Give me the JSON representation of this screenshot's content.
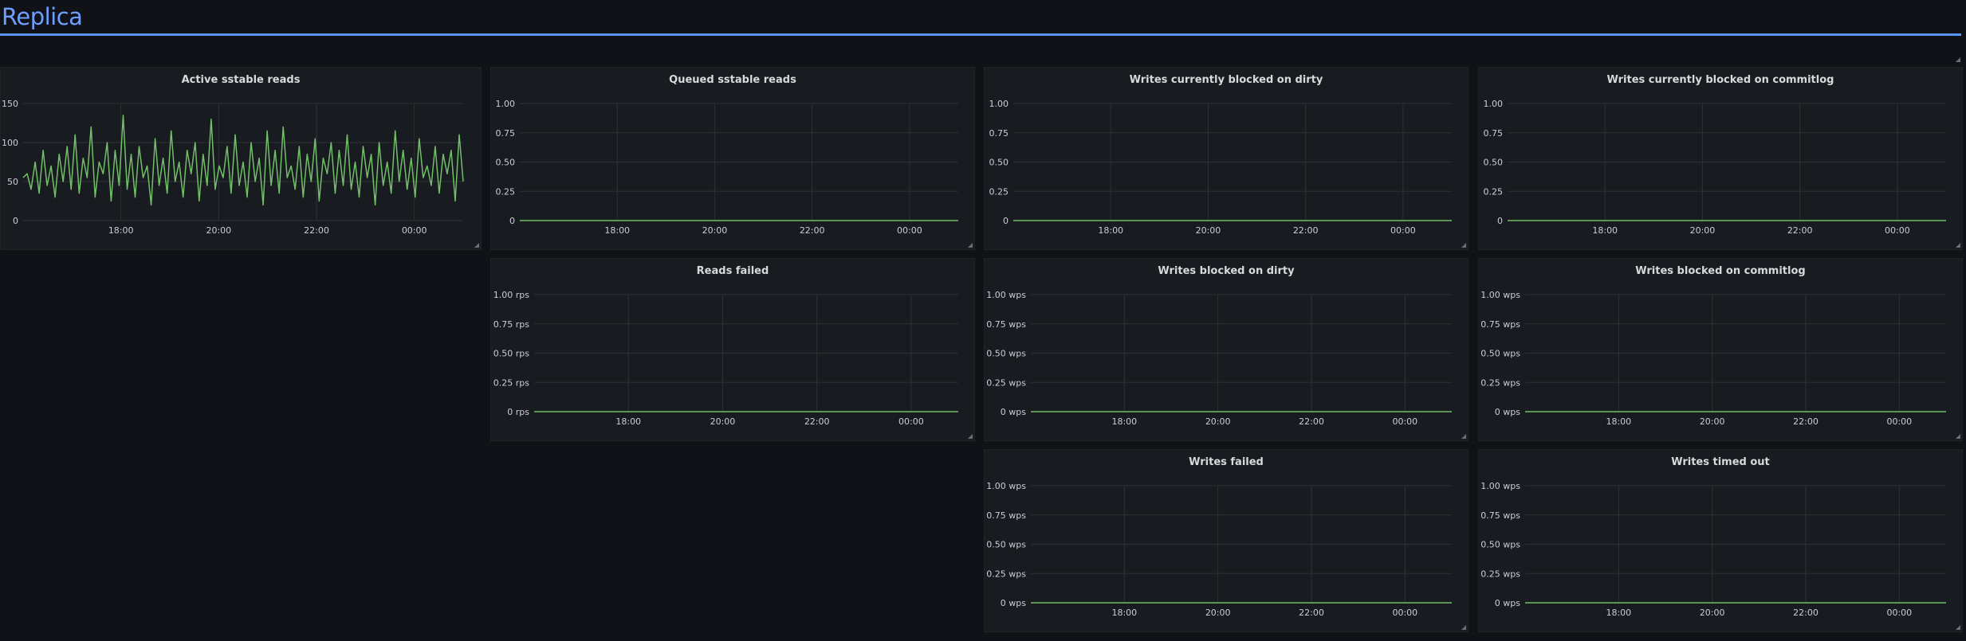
{
  "row": {
    "title": "Replica"
  },
  "colors": {
    "series": "#73bf69",
    "grid": "#2e3036",
    "panel_bg": "#181b1f",
    "page_bg": "#111217",
    "row_line": "#5794f2"
  },
  "panels": [
    {
      "id": "active-sstable-reads",
      "title": "Active sstable reads",
      "chart_kind": "noisy"
    },
    {
      "id": "queued-sstable-reads",
      "title": "Queued sstable reads",
      "chart_kind": "flat"
    },
    {
      "id": "writes-currently-blocked-on-dirty",
      "title": "Writes currently blocked on dirty",
      "chart_kind": "flat"
    },
    {
      "id": "writes-currently-blocked-on-commitlog",
      "title": "Writes currently blocked on commitlog",
      "chart_kind": "flat"
    },
    {
      "id": "reads-failed",
      "title": "Reads failed",
      "chart_kind": "flat"
    },
    {
      "id": "writes-blocked-on-dirty",
      "title": "Writes blocked on dirty",
      "chart_kind": "flat"
    },
    {
      "id": "writes-blocked-on-commitlog",
      "title": "Writes blocked on commitlog",
      "chart_kind": "flat"
    },
    {
      "id": "writes-failed",
      "title": "Writes failed",
      "chart_kind": "flat"
    },
    {
      "id": "writes-timed-out",
      "title": "Writes timed out",
      "chart_kind": "flat"
    }
  ],
  "chart_data": [
    {
      "type": "line",
      "title": "Active sstable reads",
      "x_ticks": [
        "18:00",
        "20:00",
        "22:00",
        "00:00"
      ],
      "y_ticks": [
        "0",
        "50",
        "100",
        "150"
      ],
      "ylim": [
        0,
        150
      ],
      "xlim_hours": [
        16.0,
        25.0
      ],
      "x_tick_hours": [
        18,
        20,
        22,
        24
      ],
      "data_end_hour": 25.0,
      "grid": true,
      "series": [
        {
          "values_estimated": [
            55,
            60,
            40,
            75,
            35,
            90,
            45,
            70,
            30,
            85,
            50,
            95,
            40,
            110,
            35,
            80,
            55,
            120,
            30,
            75,
            60,
            100,
            25,
            90,
            45,
            135,
            40,
            85,
            30,
            95,
            55,
            70,
            20,
            105,
            45,
            80,
            35,
            115,
            50,
            75,
            30,
            90,
            60,
            100,
            25,
            85,
            45,
            130,
            40,
            70,
            55,
            95,
            35,
            110,
            45,
            75,
            30,
            100,
            50,
            80,
            20,
            115,
            45,
            90,
            35,
            120,
            55,
            70,
            40,
            95,
            30,
            85,
            50,
            105,
            25,
            80,
            60,
            100,
            35,
            90,
            45,
            110,
            40,
            75,
            30,
            95,
            55,
            85,
            20,
            100,
            45,
            75,
            35,
            115,
            50,
            90,
            40,
            80,
            30,
            105,
            55,
            70,
            45,
            95,
            35,
            85,
            60,
            90,
            25,
            110,
            50
          ]
        }
      ]
    },
    {
      "type": "line",
      "title": "Queued sstable reads",
      "x_ticks": [
        "18:00",
        "20:00",
        "22:00",
        "00:00"
      ],
      "y_ticks": [
        "0",
        "0.25",
        "0.50",
        "0.75",
        "1.00"
      ],
      "ylim": [
        0,
        1
      ],
      "xlim_hours": [
        16.0,
        25.0
      ],
      "x_tick_hours": [
        18,
        20,
        22,
        24
      ],
      "data_end_hour": 25.0,
      "grid": true,
      "series": [
        {
          "values": [
            0,
            0
          ]
        }
      ]
    },
    {
      "type": "line",
      "title": "Writes currently blocked on dirty",
      "x_ticks": [
        "18:00",
        "20:00",
        "22:00",
        "00:00"
      ],
      "y_ticks": [
        "0",
        "0.25",
        "0.50",
        "0.75",
        "1.00"
      ],
      "ylim": [
        0,
        1
      ],
      "xlim_hours": [
        16.0,
        25.0
      ],
      "x_tick_hours": [
        18,
        20,
        22,
        24
      ],
      "data_end_hour": 25.0,
      "grid": true,
      "series": [
        {
          "values": [
            0,
            0
          ]
        }
      ]
    },
    {
      "type": "line",
      "title": "Writes currently blocked on commitlog",
      "x_ticks": [
        "18:00",
        "20:00",
        "22:00",
        "00:00"
      ],
      "y_ticks": [
        "0",
        "0.25",
        "0.50",
        "0.75",
        "1.00"
      ],
      "ylim": [
        0,
        1
      ],
      "xlim_hours": [
        16.0,
        25.0
      ],
      "x_tick_hours": [
        18,
        20,
        22,
        24
      ],
      "data_end_hour": 25.0,
      "grid": true,
      "series": [
        {
          "values": [
            0,
            0
          ]
        }
      ]
    },
    {
      "type": "line",
      "title": "Reads failed",
      "x_ticks": [
        "18:00",
        "20:00",
        "22:00",
        "00:00"
      ],
      "y_ticks": [
        "0 rps",
        "0.25 rps",
        "0.50 rps",
        "0.75 rps",
        "1.00 rps"
      ],
      "ylim": [
        0,
        1
      ],
      "unit": "rps",
      "xlim_hours": [
        16.0,
        25.0
      ],
      "x_tick_hours": [
        18,
        20,
        22,
        24
      ],
      "data_end_hour": 25.0,
      "grid": true,
      "series": [
        {
          "values": [
            0,
            0
          ]
        }
      ]
    },
    {
      "type": "line",
      "title": "Writes blocked on dirty",
      "x_ticks": [
        "18:00",
        "20:00",
        "22:00",
        "00:00"
      ],
      "y_ticks": [
        "0 wps",
        "0.25 wps",
        "0.50 wps",
        "0.75 wps",
        "1.00 wps"
      ],
      "ylim": [
        0,
        1
      ],
      "unit": "wps",
      "xlim_hours": [
        16.0,
        25.0
      ],
      "x_tick_hours": [
        18,
        20,
        22,
        24
      ],
      "data_end_hour": 25.0,
      "grid": true,
      "series": [
        {
          "values": [
            0,
            0
          ]
        }
      ]
    },
    {
      "type": "line",
      "title": "Writes blocked on commitlog",
      "x_ticks": [
        "18:00",
        "20:00",
        "22:00",
        "00:00"
      ],
      "y_ticks": [
        "0 wps",
        "0.25 wps",
        "0.50 wps",
        "0.75 wps",
        "1.00 wps"
      ],
      "ylim": [
        0,
        1
      ],
      "unit": "wps",
      "xlim_hours": [
        16.0,
        25.0
      ],
      "x_tick_hours": [
        18,
        20,
        22,
        24
      ],
      "data_end_hour": 25.0,
      "grid": true,
      "series": [
        {
          "values": [
            0,
            0
          ]
        }
      ]
    },
    {
      "type": "line",
      "title": "Writes failed",
      "x_ticks": [
        "18:00",
        "20:00",
        "22:00",
        "00:00"
      ],
      "y_ticks": [
        "0 wps",
        "0.25 wps",
        "0.50 wps",
        "0.75 wps",
        "1.00 wps"
      ],
      "ylim": [
        0,
        1
      ],
      "unit": "wps",
      "xlim_hours": [
        16.0,
        25.0
      ],
      "x_tick_hours": [
        18,
        20,
        22,
        24
      ],
      "data_end_hour": 25.0,
      "grid": true,
      "series": [
        {
          "values": [
            0,
            0
          ]
        }
      ]
    },
    {
      "type": "line",
      "title": "Writes timed out",
      "x_ticks": [
        "18:00",
        "20:00",
        "22:00",
        "00:00"
      ],
      "y_ticks": [
        "0 wps",
        "0.25 wps",
        "0.50 wps",
        "0.75 wps",
        "1.00 wps"
      ],
      "ylim": [
        0,
        1
      ],
      "unit": "wps",
      "xlim_hours": [
        16.0,
        25.0
      ],
      "x_tick_hours": [
        18,
        20,
        22,
        24
      ],
      "data_end_hour": 25.0,
      "grid": true,
      "series": [
        {
          "values": [
            0,
            0
          ]
        }
      ]
    }
  ]
}
